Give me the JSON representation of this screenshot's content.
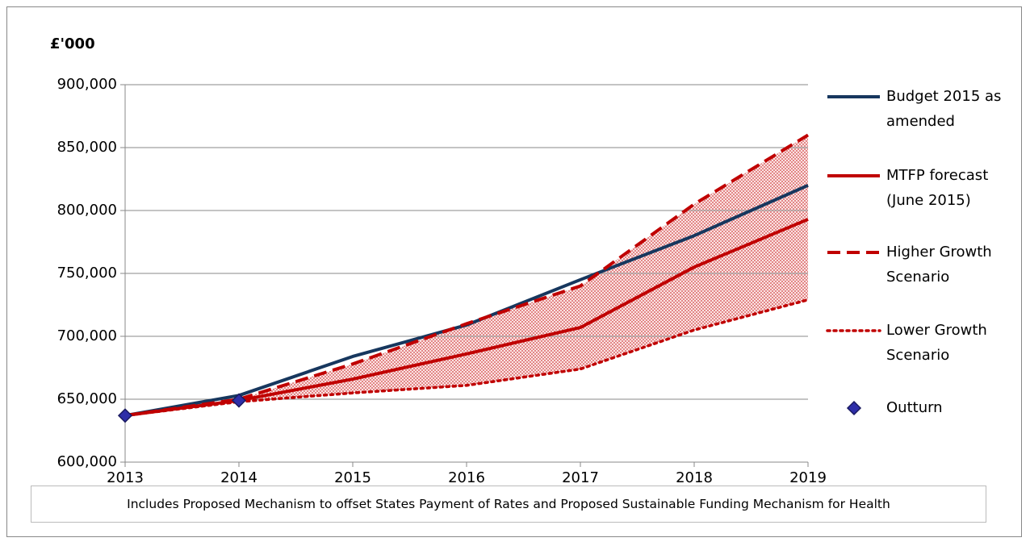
{
  "chart_data": {
    "type": "line",
    "y_axis_label": "£'000",
    "categories": [
      "2013",
      "2014",
      "2015",
      "2016",
      "2017",
      "2018",
      "2019"
    ],
    "series": [
      {
        "name": "Budget 2015 as amended",
        "color": "#17375e",
        "style": "solid",
        "values": [
          637000,
          653000,
          684000,
          709000,
          745000,
          780000,
          820000
        ]
      },
      {
        "name": "MTFP forecast (June 2015)",
        "color": "#c00000",
        "style": "solid",
        "values": [
          637000,
          649000,
          666000,
          686000,
          707000,
          755000,
          793000
        ]
      },
      {
        "name": "Higher Growth Scenario",
        "color": "#c00000",
        "style": "dashed",
        "values": [
          637000,
          650000,
          678000,
          710000,
          740000,
          805000,
          860000
        ]
      },
      {
        "name": "Lower Growth Scenario",
        "color": "#c00000",
        "style": "dotted",
        "values": [
          637000,
          648000,
          655000,
          661000,
          674000,
          705000,
          729000
        ]
      },
      {
        "name": "Outturn",
        "color": "#2e2ea8",
        "style": "marker",
        "values": [
          637000,
          649000,
          null,
          null,
          null,
          null,
          null
        ]
      }
    ],
    "fill_between": [
      2,
      3
    ],
    "ylim": [
      600000,
      900000
    ],
    "yticks": [
      {
        "value": 600000,
        "label": "600,000"
      },
      {
        "value": 650000,
        "label": "650,000"
      },
      {
        "value": 700000,
        "label": "700,000"
      },
      {
        "value": 750000,
        "label": "750,000"
      },
      {
        "value": 800000,
        "label": "800,000"
      },
      {
        "value": 850000,
        "label": "850,000"
      },
      {
        "value": 900000,
        "label": "900,000"
      }
    ],
    "grid": true,
    "legend": "right",
    "note": "Includes Proposed Mechanism to offset States Payment of Rates and Proposed Sustainable Funding Mechanism for Health"
  }
}
